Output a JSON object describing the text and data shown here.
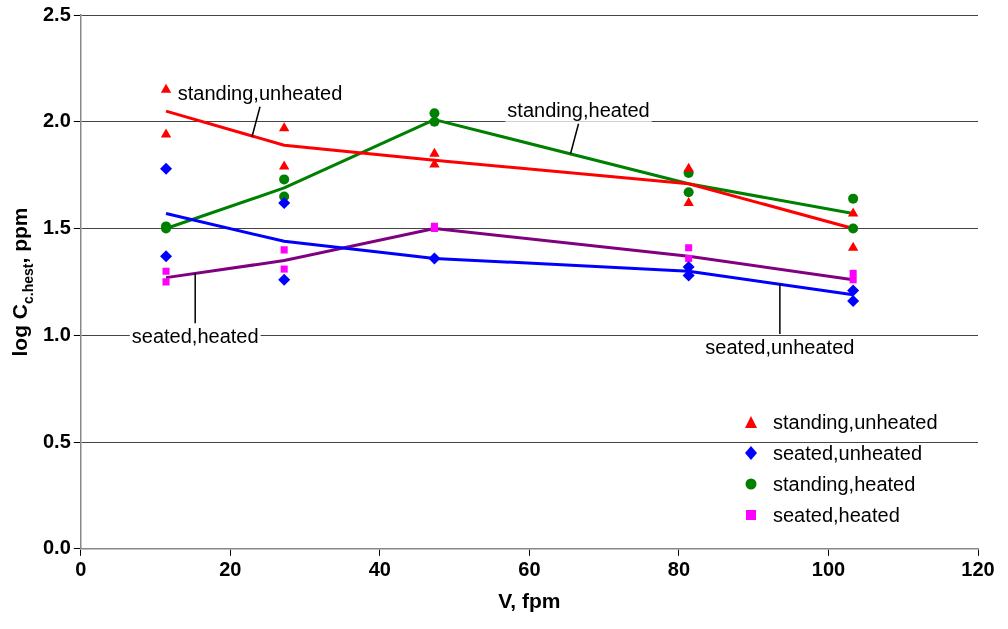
{
  "chart_data": {
    "type": "scatter",
    "xlabel": "V, fpm",
    "ylabel": "log C$_{c.hest}$, ppm",
    "xlim": [
      0,
      120
    ],
    "xticks": [
      0,
      20,
      40,
      60,
      80,
      100,
      120
    ],
    "ylim": [
      0,
      2.5
    ],
    "yticks": [
      {
        "value": 0,
        "label": "0.0"
      },
      {
        "value": 0.5,
        "label": "0.5"
      },
      {
        "value": 1,
        "label": "1.0"
      },
      {
        "value": 1.5,
        "label": "1.5"
      },
      {
        "value": 2,
        "label": "2.0"
      },
      {
        "value": 2.5,
        "label": "2.5"
      }
    ],
    "grid": "y",
    "legend": "bottom right",
    "series": [
      {
        "name": "standing,unheated",
        "marker": "triangle",
        "color": "#ff0000",
        "x": [
          11.4,
          11.4,
          27.2,
          27.2,
          47.3,
          47.3,
          81.3,
          81.3,
          103.3,
          103.3
        ],
        "values": [
          2.15,
          1.94,
          1.97,
          1.79,
          1.85,
          1.8,
          1.78,
          1.62,
          1.57,
          1.41
        ]
      },
      {
        "name": "seated,unheated",
        "marker": "diamond",
        "color": "#0000ff",
        "x": [
          11.4,
          11.4,
          27.2,
          27.2,
          47.3,
          81.3,
          81.3,
          103.3,
          103.3
        ],
        "values": [
          1.78,
          1.37,
          1.62,
          1.26,
          1.36,
          1.32,
          1.28,
          1.21,
          1.16
        ]
      },
      {
        "name": "standing,heated",
        "marker": "circle",
        "color": "#008000",
        "x": [
          11.4,
          11.4,
          27.2,
          27.2,
          47.3,
          47.3,
          81.3,
          81.3,
          103.3,
          103.3
        ],
        "values": [
          1.51,
          1.5,
          1.73,
          1.65,
          2.04,
          2.0,
          1.76,
          1.67,
          1.64,
          1.5
        ]
      },
      {
        "name": "seated,heated",
        "marker": "square",
        "color": "#ff00ff",
        "x": [
          11.4,
          11.4,
          27.2,
          27.2,
          47.3,
          47.3,
          81.3,
          81.3,
          103.3,
          103.3
        ],
        "values": [
          1.3,
          1.25,
          1.4,
          1.31,
          1.51,
          1.5,
          1.41,
          1.36,
          1.29,
          1.26
        ]
      },
      {
        "type": "line",
        "marker": "none",
        "color": "#ff0000",
        "x": [
          11.4,
          27.2,
          47.3,
          81.3,
          103.3
        ],
        "values": [
          2.05,
          1.89,
          1.82,
          1.71,
          1.5
        ]
      },
      {
        "type": "line",
        "marker": "none",
        "color": "#0000ff",
        "x": [
          11.4,
          27.2,
          47.3,
          81.3,
          103.3
        ],
        "values": [
          1.57,
          1.44,
          1.36,
          1.3,
          1.19
        ]
      },
      {
        "type": "line",
        "marker": "none",
        "color": "#008000",
        "x": [
          11.4,
          27.2,
          47.3,
          81.3,
          103.3
        ],
        "values": [
          1.5,
          1.69,
          2.01,
          1.71,
          1.57
        ]
      },
      {
        "type": "line",
        "marker": "none",
        "color": "#800080",
        "x": [
          11.4,
          27.2,
          47.3,
          81.3,
          103.3
        ],
        "values": [
          1.27,
          1.35,
          1.5,
          1.37,
          1.26
        ]
      }
    ],
    "annotations": [
      {
        "text": "standing,unheated",
        "x": 22.9,
        "y": 1.93
      },
      {
        "text": "standing,heated",
        "x": 65.5,
        "y": 1.85
      },
      {
        "text": "seated,heated",
        "x": 15.3,
        "y": 1.29
      },
      {
        "text": "seated,unheated",
        "x": 93.5,
        "y": 1.24
      }
    ]
  }
}
